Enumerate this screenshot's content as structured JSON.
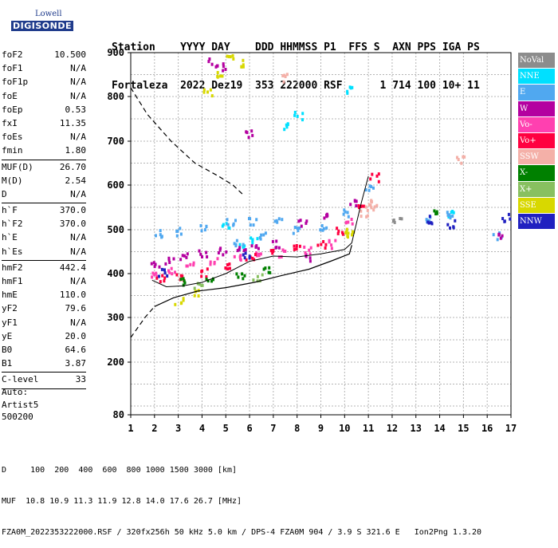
{
  "brand": {
    "top": "Lowell",
    "main": "DIGISONDE"
  },
  "header": {
    "row1": "Station    YYYY DAY    DDD HHMMSS P1  FFS S  AXN PPS IGA PS",
    "row2": "Fortaleza  2022 Dez19  353 222000 RSF      1 714 100 10+ 11"
  },
  "params": [
    {
      "k": "foF2",
      "v": "10.500"
    },
    {
      "k": "foF1",
      "v": "N/A"
    },
    {
      "k": "foF1p",
      "v": "N/A"
    },
    {
      "k": "foE",
      "v": "N/A"
    },
    {
      "k": "foEp",
      "v": "0.53"
    },
    {
      "k": "fxI",
      "v": "11.35"
    },
    {
      "k": "foEs",
      "v": "N/A"
    },
    {
      "k": "fmin",
      "v": "1.80"
    },
    {
      "k": "MUF(D)",
      "v": "26.70"
    },
    {
      "k": "M(D)",
      "v": "2.54"
    },
    {
      "k": "D",
      "v": "N/A"
    },
    {
      "k": "h`F",
      "v": "370.0"
    },
    {
      "k": "h`F2",
      "v": "370.0"
    },
    {
      "k": "h`E",
      "v": "N/A"
    },
    {
      "k": "h`Es",
      "v": "N/A"
    },
    {
      "k": "hmF2",
      "v": "442.4"
    },
    {
      "k": "hmF1",
      "v": "N/A"
    },
    {
      "k": "hmE",
      "v": "110.0"
    },
    {
      "k": "yF2",
      "v": "79.6"
    },
    {
      "k": "yF1",
      "v": "N/A"
    },
    {
      "k": "yE",
      "v": "20.0"
    },
    {
      "k": "B0",
      "v": "64.6"
    },
    {
      "k": "B1",
      "v": "3.87"
    },
    {
      "k": "C-level",
      "v": "33"
    }
  ],
  "auto": {
    "line1": "Auto:",
    "line2": "Artist5",
    "line3": "500200"
  },
  "legend": [
    {
      "label": "NoVal",
      "color": "#8c8c8c"
    },
    {
      "label": "NNE",
      "color": "#00e0ff"
    },
    {
      "label": "E",
      "color": "#50a8f0"
    },
    {
      "label": "W",
      "color": "#b400a0"
    },
    {
      "label": "Vo-",
      "color": "#ff40b0"
    },
    {
      "label": "Vo+",
      "color": "#ff0040"
    },
    {
      "label": "SSW",
      "color": "#f4b0a8"
    },
    {
      "label": "X-",
      "color": "#008000"
    },
    {
      "label": "X+",
      "color": "#88c060"
    },
    {
      "label": "SSE",
      "color": "#d8d800"
    },
    {
      "label": "NNW",
      "color": "#2020c0"
    }
  ],
  "bottom": {
    "line1": "D     100  200  400  600  800 1000 1500 3000 [km]",
    "line2": "MUF  10.8 10.9 11.3 11.9 12.8 14.0 17.6 26.7 [MHz]",
    "line3": "FZA0M_2022353222000.RSF / 320fx256h 50 kHz 5.0 km / DPS-4 FZA0M 904 / 3.9 S 321.6 E   Ion2Png 1.3.20"
  },
  "chart_data": {
    "type": "scatter",
    "xlabel": "",
    "ylabel": "",
    "xlim": [
      1,
      17
    ],
    "ylim": [
      80,
      900
    ],
    "xticks": [
      1,
      2,
      3,
      4,
      5,
      6,
      7,
      8,
      9,
      10,
      11,
      12,
      13,
      14,
      15,
      16,
      17
    ],
    "yticks": [
      80,
      200,
      300,
      400,
      500,
      600,
      700,
      800,
      900
    ],
    "grid": true,
    "legend_position": "right",
    "series": [
      {
        "name": "NNE",
        "points": [
          [
            5.7,
            465
          ],
          [
            7.5,
            735
          ],
          [
            8.0,
            760
          ],
          [
            10.2,
            820
          ],
          [
            14.5,
            540
          ],
          [
            5.0,
            510
          ],
          [
            6.1,
            480
          ]
        ]
      },
      {
        "name": "E",
        "points": [
          [
            2.1,
            495
          ],
          [
            3.0,
            498
          ],
          [
            4.1,
            510
          ],
          [
            5.2,
            520
          ],
          [
            6.1,
            520
          ],
          [
            7.2,
            520
          ],
          [
            8.0,
            500
          ],
          [
            9.1,
            510
          ],
          [
            10.1,
            540
          ],
          [
            11.0,
            600
          ],
          [
            13.4,
            530
          ],
          [
            14.3,
            535
          ],
          [
            16.4,
            490
          ],
          [
            5.5,
            470
          ],
          [
            6.5,
            490
          ]
        ]
      },
      {
        "name": "W",
        "points": [
          [
            2.0,
            420
          ],
          [
            2.6,
            430
          ],
          [
            3.2,
            440
          ],
          [
            4.0,
            450
          ],
          [
            4.8,
            455
          ],
          [
            5.6,
            460
          ],
          [
            6.2,
            465
          ],
          [
            7.1,
            470
          ],
          [
            8.2,
            520
          ],
          [
            9.2,
            530
          ],
          [
            10.4,
            560
          ],
          [
            4.4,
            880
          ],
          [
            4.8,
            870
          ],
          [
            6.0,
            720
          ],
          [
            8.5,
            440
          ],
          [
            16.6,
            490
          ]
        ]
      },
      {
        "name": "Vo-",
        "points": [
          [
            1.9,
            400
          ],
          [
            2.7,
            410
          ],
          [
            3.5,
            420
          ],
          [
            4.5,
            430
          ],
          [
            5.4,
            440
          ],
          [
            6.4,
            450
          ],
          [
            7.4,
            450
          ],
          [
            8.4,
            455
          ],
          [
            9.5,
            470
          ],
          [
            10.2,
            520
          ]
        ]
      },
      {
        "name": "Vo+",
        "points": [
          [
            2.2,
            390
          ],
          [
            3.0,
            395
          ],
          [
            4.0,
            405
          ],
          [
            5.0,
            420
          ],
          [
            6.0,
            440
          ],
          [
            7.0,
            450
          ],
          [
            8.0,
            460
          ],
          [
            9.0,
            470
          ],
          [
            9.8,
            500
          ],
          [
            10.6,
            560
          ],
          [
            11.2,
            620
          ]
        ]
      },
      {
        "name": "SSW",
        "points": [
          [
            10.8,
            540
          ],
          [
            11.0,
            560
          ],
          [
            11.2,
            555
          ],
          [
            7.5,
            845
          ],
          [
            14.8,
            660
          ]
        ]
      },
      {
        "name": "X-",
        "points": [
          [
            3.2,
            385
          ],
          [
            4.3,
            395
          ],
          [
            5.6,
            400
          ],
          [
            6.7,
            410
          ],
          [
            13.7,
            540
          ]
        ]
      },
      {
        "name": "X+",
        "points": [
          [
            3.8,
            375
          ],
          [
            6.3,
            395
          ]
        ]
      },
      {
        "name": "SSE",
        "points": [
          [
            4.2,
            810
          ],
          [
            4.7,
            850
          ],
          [
            5.2,
            890
          ],
          [
            5.7,
            880
          ],
          [
            3.0,
            340
          ],
          [
            3.8,
            360
          ],
          [
            10.1,
            490
          ],
          [
            10.2,
            500
          ]
        ]
      },
      {
        "name": "NNW",
        "points": [
          [
            2.3,
            405
          ],
          [
            5.8,
            445
          ],
          [
            13.6,
            525
          ],
          [
            14.4,
            515
          ],
          [
            16.8,
            530
          ]
        ]
      },
      {
        "name": "NoVal",
        "points": [
          [
            12.2,
            520
          ]
        ]
      }
    ],
    "curves": {
      "trace_dashed_left": [
        [
          1.0,
          820
        ],
        [
          1.7,
          760
        ],
        [
          2.7,
          700
        ],
        [
          3.7,
          650
        ],
        [
          4.7,
          620
        ],
        [
          5.3,
          600
        ],
        [
          5.7,
          580
        ]
      ],
      "trace_dashed_bottom": [
        [
          1.0,
          255
        ],
        [
          1.6,
          300
        ],
        [
          2.0,
          325
        ]
      ],
      "trace_solid": [
        [
          2.0,
          325
        ],
        [
          2.8,
          345
        ],
        [
          3.8,
          360
        ],
        [
          5.0,
          368
        ],
        [
          6.2,
          380
        ],
        [
          7.3,
          395
        ],
        [
          8.5,
          410
        ],
        [
          9.5,
          430
        ],
        [
          10.2,
          445
        ],
        [
          10.3,
          465
        ]
      ],
      "trace_inner": [
        [
          1.9,
          385
        ],
        [
          2.5,
          370
        ],
        [
          3.2,
          372
        ],
        [
          4.0,
          380
        ],
        [
          5.0,
          400
        ],
        [
          6.0,
          428
        ],
        [
          7.0,
          440
        ],
        [
          8.0,
          438
        ],
        [
          9.0,
          445
        ],
        [
          10.0,
          455
        ],
        [
          10.3,
          470
        ],
        [
          10.7,
          560
        ],
        [
          11.0,
          620
        ]
      ]
    }
  }
}
